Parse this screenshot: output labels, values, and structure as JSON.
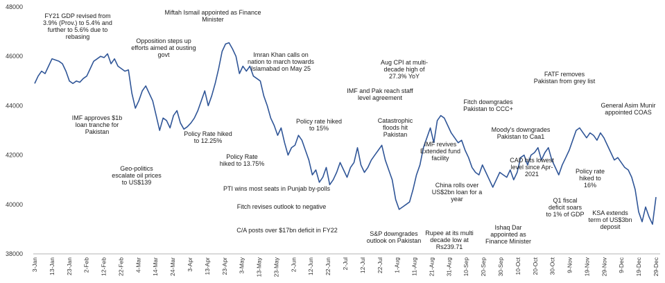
{
  "chart_data": {
    "type": "line",
    "title": "",
    "xlabel": "",
    "ylabel": "",
    "ylim": [
      38000,
      48000
    ],
    "yticks": [
      38000,
      40000,
      42000,
      44000,
      46000,
      48000
    ],
    "ytick_labels": [
      "38000",
      "40000",
      "42000",
      "44000",
      "46000",
      "48000"
    ],
    "grid": false,
    "legend": "none",
    "line_color": "#2f5597",
    "xtick_labels": [
      "3-Jan",
      "13-Jan",
      "23-Jan",
      "2-Feb",
      "12-Feb",
      "22-Feb",
      "4-Mar",
      "14-Mar",
      "24-Mar",
      "3-Apr",
      "13-Apr",
      "23-Apr",
      "3-May",
      "13-May",
      "23-May",
      "2-Jun",
      "12-Jun",
      "22-Jun",
      "2-Jul",
      "12-Jul",
      "22-Jul",
      "1-Aug",
      "11-Aug",
      "21-Aug",
      "31-Aug",
      "10-Sep",
      "20-Sep",
      "30-Sep",
      "10-Oct",
      "20-Oct",
      "30-Oct",
      "9-Nov",
      "19-Nov",
      "29-Nov",
      "9-Dec",
      "19-Dec",
      "29-Dec"
    ],
    "series": [
      {
        "values": [
          44900,
          45200,
          45400,
          45300,
          45600,
          45900,
          45850,
          45800,
          45700,
          45400,
          45000,
          44900,
          45000,
          44950,
          45100,
          45200,
          45500,
          45800,
          45900,
          46000,
          45950,
          46100,
          45700,
          45900,
          45600,
          45500,
          45400,
          45450,
          44500,
          43900,
          44200,
          44600,
          44800,
          44500,
          44200,
          43600,
          43000,
          43500,
          43400,
          43100,
          43600,
          43800,
          43300,
          43050,
          43150,
          43300,
          43500,
          43800,
          44200,
          44600,
          44000,
          44400,
          44900,
          45500,
          46200,
          46500,
          46550,
          46300,
          46000,
          45300,
          45600,
          45400,
          45600,
          45200,
          45100,
          45000,
          44400,
          44000,
          43500,
          43200,
          42800,
          43100,
          42500,
          42000,
          42300,
          42400,
          42800,
          42600,
          42200,
          41800,
          41200,
          41400,
          40900,
          41100,
          41500,
          40800,
          41000,
          41300,
          41700,
          41400,
          41100,
          41500,
          41700,
          42300,
          41600,
          41300,
          41500,
          41800,
          42000,
          42200,
          42400,
          41800,
          41400,
          41000,
          40200,
          39800,
          39900,
          40000,
          40100,
          40600,
          41200,
          41600,
          42300,
          42700,
          43100,
          42500,
          43400,
          43600,
          43500,
          43200,
          42900,
          42700,
          42500,
          42600,
          42200,
          41900,
          41500,
          41300,
          41200,
          41600,
          41300,
          41000,
          40700,
          41000,
          41300,
          41200,
          41100,
          41400,
          41000,
          41300,
          41900,
          42000,
          41600,
          42000,
          42100,
          42300,
          41800,
          42100,
          42300,
          41800,
          41500,
          41200,
          41600,
          41900,
          42200,
          42600,
          43000,
          43100,
          42900,
          42700,
          42900,
          42800,
          42600,
          42900,
          42700,
          42400,
          42100,
          41800,
          41900,
          41700,
          41500,
          41400,
          41100,
          40600,
          39700,
          39300,
          39900,
          39500,
          39200,
          40300
        ]
      }
    ]
  },
  "annotations": [
    {
      "lines": [
        "FY21 GDP revised from",
        "3.9% (Prov.) to 5.4% and",
        "further to 5.6% due to",
        "rebasing"
      ]
    },
    {
      "lines": [
        "Miftah Ismail appointed as Finance",
        "Minister"
      ]
    },
    {
      "lines": [
        "Opposition steps up",
        "efforts aimed at ousting",
        "govt"
      ]
    },
    {
      "lines": [
        "Imran Khan calls on",
        "nation to march towards",
        "Islamabad on May 25"
      ]
    },
    {
      "lines": [
        "Aug CPI at multi-",
        "decade high of",
        "27.3% YoY"
      ]
    },
    {
      "lines": [
        "FATF removes",
        "Pakistan from grey list"
      ]
    },
    {
      "lines": [
        "IMF and Pak reach staff",
        "level agreement"
      ]
    },
    {
      "lines": [
        "Fitch downgrades",
        "Pakistan to CCC+"
      ]
    },
    {
      "lines": [
        "General Asim Munir",
        "appointed COAS"
      ]
    },
    {
      "lines": [
        "IMF approves $1b",
        "loan tranche for",
        "Pakistan"
      ]
    },
    {
      "lines": [
        "Policy Rate hiked",
        "to 12.25%"
      ]
    },
    {
      "lines": [
        "Policy rate hiked",
        "to 15%"
      ]
    },
    {
      "lines": [
        "Catastrophic",
        "floods hit",
        "Pakistan"
      ]
    },
    {
      "lines": [
        "Moody's downgrades",
        "Pakistan to Caa1"
      ]
    },
    {
      "lines": [
        "Policy Rate",
        "hiked to 13.75%"
      ]
    },
    {
      "lines": [
        "IMF revives",
        "Extended fund",
        "facility"
      ]
    },
    {
      "lines": [
        "Geo-politics",
        "escalate oil prices",
        "to US$139"
      ]
    },
    {
      "lines": [
        "CAD hits lowest",
        "level since Apr-",
        "2021"
      ]
    },
    {
      "lines": [
        "Policy rate",
        "hiked to",
        "16%"
      ]
    },
    {
      "lines": [
        "PTI wins most seats in Punjab by-polls"
      ]
    },
    {
      "lines": [
        "China rolls over",
        "US$2bn loan for a",
        "year"
      ]
    },
    {
      "lines": [
        "Q1 fiscal",
        "deficit soars",
        "to 1% of GDP"
      ]
    },
    {
      "lines": [
        "Fitch revises outlook to negative"
      ]
    },
    {
      "lines": [
        "KSA extends",
        "term of US$3bn",
        "deposit"
      ]
    },
    {
      "lines": [
        "C/A posts over $17bn deficit in FY22"
      ]
    },
    {
      "lines": [
        "S&P downgrades",
        "outlook on Pakistan"
      ]
    },
    {
      "lines": [
        "Rupee at its multi",
        "decade low at",
        "Rs239.71"
      ]
    },
    {
      "lines": [
        "Ishaq Dar",
        "appointed as",
        "Finance Minister"
      ]
    }
  ]
}
